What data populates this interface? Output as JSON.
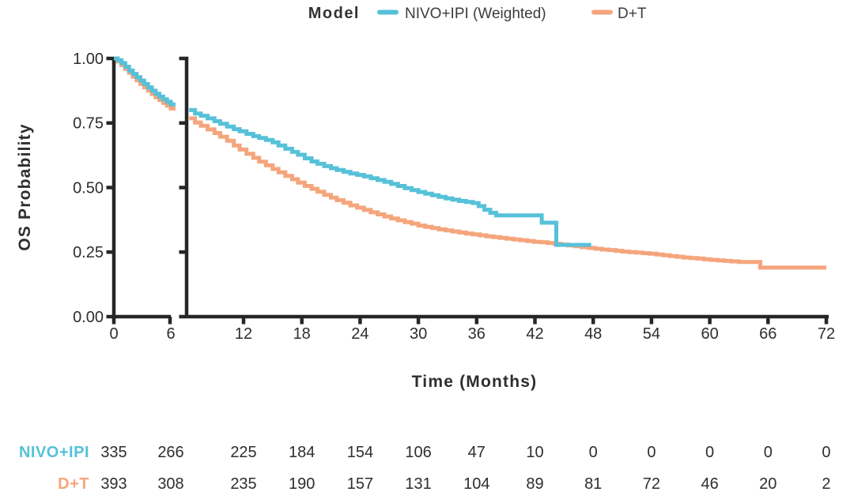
{
  "legend": {
    "title": "Model",
    "entries": [
      {
        "label": "NIVO+IPI (Weighted)",
        "color": "#56c1d8"
      },
      {
        "label": "D+T",
        "color": "#f5a57c"
      }
    ]
  },
  "y_axis": {
    "label": "OS Probability",
    "tick_labels": [
      "1.00",
      "0.75",
      "0.50",
      "0.25",
      "0.00"
    ]
  },
  "x_axis": {
    "label": "Time (Months)",
    "tick_labels": [
      "0",
      "6",
      "12",
      "18",
      "24",
      "30",
      "36",
      "42",
      "48",
      "54",
      "60",
      "66",
      "72"
    ]
  },
  "chart_data": {
    "type": "line",
    "subtype": "kaplan_meier_step",
    "title": "Model",
    "xlabel": "Time (Months)",
    "ylabel": "OS Probability",
    "xlim": [
      0,
      72
    ],
    "ylim": [
      0,
      1
    ],
    "grid": false,
    "legend_position": "top",
    "x_ticks": [
      0,
      6,
      12,
      18,
      24,
      30,
      36,
      42,
      48,
      54,
      60,
      66,
      72
    ],
    "y_ticks": [
      0,
      0.25,
      0.5,
      0.75,
      1.0
    ],
    "axis_break": {
      "break_after_month": 6,
      "resume_near_month": 7
    },
    "series": [
      {
        "name": "NIVO+IPI (Weighted)",
        "color": "#56c1d8",
        "segment1_points": [
          [
            0,
            1.0
          ],
          [
            0.4,
            0.993
          ],
          [
            0.8,
            0.982
          ],
          [
            1.2,
            0.968
          ],
          [
            1.6,
            0.953
          ],
          [
            2.0,
            0.94
          ],
          [
            2.4,
            0.927
          ],
          [
            2.8,
            0.914
          ],
          [
            3.2,
            0.901
          ],
          [
            3.6,
            0.888
          ],
          [
            4.0,
            0.875
          ],
          [
            4.4,
            0.863
          ],
          [
            4.8,
            0.852
          ],
          [
            5.2,
            0.842
          ],
          [
            5.6,
            0.832
          ],
          [
            6.0,
            0.822
          ]
        ],
        "segment1_end_month": 6.5,
        "segment2_points": [
          [
            6.4,
            0.8
          ],
          [
            7,
            0.787
          ],
          [
            7.6,
            0.778
          ],
          [
            8.3,
            0.768
          ],
          [
            9,
            0.757
          ],
          [
            9.6,
            0.747
          ],
          [
            10.3,
            0.736
          ],
          [
            11,
            0.726
          ],
          [
            11.6,
            0.718
          ],
          [
            12.3,
            0.708
          ],
          [
            13,
            0.699
          ],
          [
            13.6,
            0.692
          ],
          [
            14.3,
            0.684
          ],
          [
            15,
            0.675
          ],
          [
            15.6,
            0.663
          ],
          [
            16.3,
            0.65
          ],
          [
            17,
            0.638
          ],
          [
            17.6,
            0.627
          ],
          [
            18.3,
            0.613
          ],
          [
            19,
            0.601
          ],
          [
            19.6,
            0.592
          ],
          [
            20.3,
            0.583
          ],
          [
            21,
            0.575
          ],
          [
            21.6,
            0.568
          ],
          [
            22.3,
            0.561
          ],
          [
            23,
            0.554
          ],
          [
            23.7,
            0.549
          ],
          [
            24.4,
            0.543
          ],
          [
            25.1,
            0.536
          ],
          [
            25.8,
            0.529
          ],
          [
            26.5,
            0.522
          ],
          [
            27.2,
            0.514
          ],
          [
            27.9,
            0.506
          ],
          [
            28.6,
            0.498
          ],
          [
            29.3,
            0.49
          ],
          [
            30,
            0.483
          ],
          [
            30.7,
            0.476
          ],
          [
            31.4,
            0.47
          ],
          [
            32.1,
            0.464
          ],
          [
            32.8,
            0.458
          ],
          [
            33.5,
            0.453
          ],
          [
            34.2,
            0.448
          ],
          [
            34.9,
            0.444
          ],
          [
            35.6,
            0.44
          ],
          [
            36.2,
            0.428
          ],
          [
            36.8,
            0.414
          ],
          [
            37.4,
            0.402
          ],
          [
            38,
            0.392
          ],
          [
            42.7,
            0.364
          ],
          [
            44.2,
            0.278
          ]
        ],
        "segment2_end_month": 47.8
      },
      {
        "name": "D+T",
        "color": "#f5a57c",
        "segment1_points": [
          [
            0,
            1.0
          ],
          [
            0.4,
            0.988
          ],
          [
            0.8,
            0.974
          ],
          [
            1.2,
            0.959
          ],
          [
            1.6,
            0.944
          ],
          [
            2.0,
            0.929
          ],
          [
            2.4,
            0.915
          ],
          [
            2.8,
            0.901
          ],
          [
            3.2,
            0.888
          ],
          [
            3.6,
            0.875
          ],
          [
            4.0,
            0.862
          ],
          [
            4.4,
            0.85
          ],
          [
            4.8,
            0.839
          ],
          [
            5.2,
            0.828
          ],
          [
            5.6,
            0.817
          ],
          [
            6.0,
            0.806
          ]
        ],
        "segment1_end_month": 6.5,
        "segment2_points": [
          [
            6.4,
            0.768
          ],
          [
            7,
            0.752
          ],
          [
            7.6,
            0.739
          ],
          [
            8.3,
            0.725
          ],
          [
            9,
            0.711
          ],
          [
            9.6,
            0.697
          ],
          [
            10.3,
            0.681
          ],
          [
            11,
            0.663
          ],
          [
            11.6,
            0.647
          ],
          [
            12.3,
            0.631
          ],
          [
            13,
            0.615
          ],
          [
            13.6,
            0.6
          ],
          [
            14.3,
            0.586
          ],
          [
            15,
            0.572
          ],
          [
            15.6,
            0.559
          ],
          [
            16.3,
            0.545
          ],
          [
            17,
            0.532
          ],
          [
            17.6,
            0.519
          ],
          [
            18.3,
            0.506
          ],
          [
            19,
            0.495
          ],
          [
            19.6,
            0.484
          ],
          [
            20.3,
            0.472
          ],
          [
            21,
            0.461
          ],
          [
            21.6,
            0.451
          ],
          [
            22.3,
            0.441
          ],
          [
            23,
            0.431
          ],
          [
            23.7,
            0.422
          ],
          [
            24.4,
            0.413
          ],
          [
            25.1,
            0.404
          ],
          [
            25.8,
            0.396
          ],
          [
            26.5,
            0.388
          ],
          [
            27.2,
            0.38
          ],
          [
            27.9,
            0.373
          ],
          [
            28.6,
            0.366
          ],
          [
            29.3,
            0.36
          ],
          [
            30,
            0.353
          ],
          [
            30.7,
            0.348
          ],
          [
            31.4,
            0.343
          ],
          [
            32.1,
            0.338
          ],
          [
            32.8,
            0.334
          ],
          [
            33.5,
            0.33
          ],
          [
            34.2,
            0.326
          ],
          [
            34.9,
            0.322
          ],
          [
            35.6,
            0.319
          ],
          [
            36.3,
            0.315
          ],
          [
            37,
            0.311
          ],
          [
            37.7,
            0.308
          ],
          [
            38.4,
            0.305
          ],
          [
            39.1,
            0.302
          ],
          [
            39.8,
            0.299
          ],
          [
            40.5,
            0.296
          ],
          [
            41.2,
            0.293
          ],
          [
            41.9,
            0.29
          ],
          [
            42.6,
            0.288
          ],
          [
            43.3,
            0.285
          ],
          [
            44,
            0.282
          ],
          [
            44.7,
            0.279
          ],
          [
            45.4,
            0.276
          ],
          [
            46.1,
            0.273
          ],
          [
            46.8,
            0.269
          ],
          [
            47.5,
            0.266
          ],
          [
            48.2,
            0.263
          ],
          [
            48.9,
            0.26
          ],
          [
            49.6,
            0.258
          ],
          [
            50.3,
            0.255
          ],
          [
            51,
            0.252
          ],
          [
            51.7,
            0.25
          ],
          [
            52.4,
            0.248
          ],
          [
            53.1,
            0.246
          ],
          [
            53.8,
            0.244
          ],
          [
            54.5,
            0.241
          ],
          [
            55.2,
            0.238
          ],
          [
            55.9,
            0.235
          ],
          [
            56.6,
            0.232
          ],
          [
            57.3,
            0.229
          ],
          [
            58,
            0.227
          ],
          [
            58.7,
            0.225
          ],
          [
            59.4,
            0.222
          ],
          [
            60.1,
            0.22
          ],
          [
            60.8,
            0.218
          ],
          [
            61.5,
            0.216
          ],
          [
            62.2,
            0.214
          ],
          [
            63,
            0.212
          ],
          [
            65.2,
            0.19
          ]
        ],
        "segment2_end_month": 72
      }
    ],
    "risk_table": {
      "columns_months": [
        0,
        6,
        12,
        18,
        24,
        30,
        36,
        42,
        48,
        54,
        60,
        66,
        72
      ],
      "rows": [
        {
          "label": "NIVO+IPI",
          "color": "#56c1d8",
          "values": [
            335,
            266,
            225,
            184,
            154,
            106,
            47,
            10,
            0,
            0,
            0,
            0,
            0
          ]
        },
        {
          "label": "D+T",
          "color": "#f5a57c",
          "values": [
            393,
            308,
            235,
            190,
            157,
            131,
            104,
            89,
            81,
            72,
            46,
            20,
            2
          ]
        }
      ]
    }
  },
  "colors": {
    "axis": "#262626",
    "text": "#2e2e2e"
  }
}
